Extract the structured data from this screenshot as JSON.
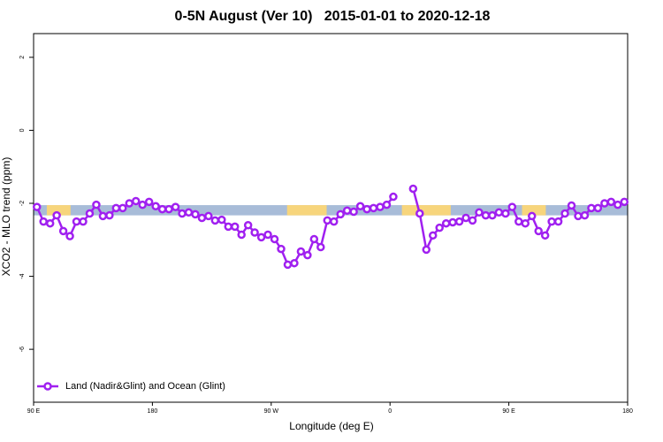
{
  "chart_data": {
    "type": "line",
    "title": "0-5N August (Ver 10)   2015-01-01 to 2020-12-18",
    "x_label": "Longitude (deg E)",
    "y_label": "XCO2 - MLO trend (ppm)",
    "xlim": [
      90,
      540
    ],
    "ylim": [
      -7.45,
      2.65
    ],
    "xticks": [
      {
        "value": 90,
        "label": "90 E"
      },
      180,
      {
        "value": 270,
        "label": "90 W"
      },
      {
        "value": 360,
        "label": "0"
      },
      {
        "value": 450,
        "label": "90 E"
      },
      {
        "value": 540,
        "label": "180"
      }
    ],
    "yticks": [
      2,
      0,
      -2,
      -4,
      -6
    ],
    "band": {
      "ylim": [
        -2.33,
        -2.05
      ],
      "color": "#a8bcd8",
      "highlight_color": "#f7d57c",
      "highlight_spans": [
        [
          100,
          118
        ],
        [
          282,
          312
        ],
        [
          369,
          406
        ],
        [
          460,
          478
        ]
      ]
    },
    "x": [
      92.5,
      97.5,
      102.5,
      107.5,
      112.5,
      117.5,
      122.5,
      127.5,
      132.5,
      137.5,
      142.5,
      147.5,
      152.5,
      157.5,
      162.5,
      167.5,
      172.5,
      177.5,
      182.5,
      187.5,
      192.5,
      197.5,
      202.5,
      207.5,
      212.5,
      217.5,
      222.5,
      227.5,
      232.5,
      237.5,
      242.5,
      247.5,
      252.5,
      257.5,
      262.5,
      267.5,
      272.5,
      277.5,
      282.5,
      287.5,
      292.5,
      297.5,
      302.5,
      307.5,
      312.5,
      317.5,
      322.5,
      327.5,
      332.5,
      337.5,
      342.5,
      347.5,
      352.5,
      357.5,
      362.5,
      367.5,
      372.5,
      377.5,
      382.5,
      387.5,
      392.5,
      397.5,
      402.5,
      407.5,
      412.5,
      417.5,
      422.5,
      427.5,
      432.5,
      437.5,
      442.5,
      447.5,
      452.5,
      457.5,
      462.5,
      467.5,
      472.5,
      477.5,
      482.5,
      487.5,
      492.5,
      497.5,
      502.5,
      507.5,
      512.5,
      517.5,
      522.5,
      527.5,
      532.5,
      537.5
    ],
    "series": [
      {
        "name": "Land (Nadir&Glint) and Ocean (Glint)",
        "color": "#a020f0",
        "values": [
          -2.1,
          -2.5,
          -2.55,
          -2.33,
          -2.76,
          -2.9,
          -2.5,
          -2.5,
          -2.28,
          -2.04,
          -2.35,
          -2.33,
          -2.13,
          -2.13,
          -2.0,
          -1.94,
          -2.04,
          -1.96,
          -2.08,
          -2.16,
          -2.16,
          -2.1,
          -2.28,
          -2.25,
          -2.3,
          -2.4,
          -2.35,
          -2.47,
          -2.45,
          -2.64,
          -2.64,
          -2.86,
          -2.6,
          -2.8,
          -2.93,
          -2.86,
          -2.98,
          -3.25,
          -3.68,
          -3.64,
          -3.32,
          -3.42,
          -2.98,
          -3.2,
          -2.47,
          -2.5,
          -2.3,
          -2.2,
          -2.23,
          -2.08,
          -2.16,
          -2.13,
          -2.1,
          -2.04,
          -1.82,
          null,
          null,
          -1.6,
          -2.28,
          -3.27,
          -2.88,
          -2.67,
          -2.55,
          -2.52,
          -2.5,
          -2.4,
          -2.47,
          -2.25,
          -2.33,
          -2.33,
          -2.25,
          -2.28,
          -2.1,
          -2.5,
          -2.55,
          -2.35,
          -2.76,
          -2.88,
          -2.5,
          -2.5,
          -2.28,
          -2.06,
          -2.35,
          -2.33,
          -2.13,
          -2.13,
          -2.0,
          -1.96,
          -2.04,
          -1.96
        ]
      }
    ],
    "legend": "bottom-left"
  }
}
